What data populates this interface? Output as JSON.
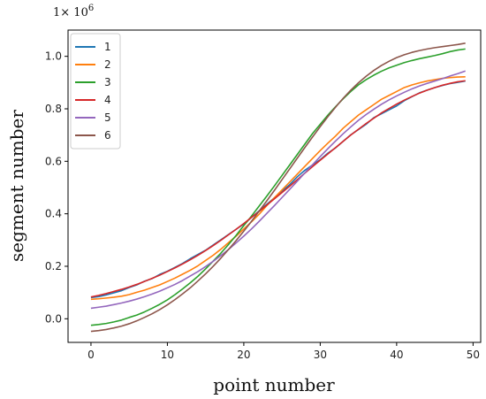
{
  "chart_data": {
    "type": "line",
    "title": "",
    "xlabel": "point number",
    "ylabel": "segment number",
    "scale_label": "1× 10",
    "scale_exp": "6",
    "xlim": [
      -3,
      51
    ],
    "ylim": [
      -0.09,
      1.1
    ],
    "x_ticks": [
      0,
      10,
      20,
      30,
      40,
      50
    ],
    "y_ticks": [
      0.0,
      0.2,
      0.4,
      0.6,
      0.8,
      1.0
    ],
    "x_tick_labels": [
      "0",
      "10",
      "20",
      "30",
      "40",
      "50"
    ],
    "y_tick_labels": [
      "0.0",
      "0.2",
      "0.4",
      "0.6",
      "0.8",
      "1.0"
    ],
    "grid": false,
    "legend_position": "top-left",
    "x": [
      0,
      1,
      2,
      3,
      4,
      5,
      6,
      7,
      8,
      9,
      10,
      11,
      12,
      13,
      14,
      15,
      16,
      17,
      18,
      19,
      20,
      21,
      22,
      23,
      24,
      25,
      26,
      27,
      28,
      29,
      30,
      31,
      32,
      33,
      34,
      35,
      36,
      37,
      38,
      39,
      40,
      41,
      42,
      43,
      44,
      45,
      46,
      47,
      48,
      49
    ],
    "series": [
      {
        "name": "1",
        "color": "#1f77b4",
        "values": [
          0.081,
          0.084,
          0.091,
          0.099,
          0.107,
          0.119,
          0.129,
          0.143,
          0.153,
          0.169,
          0.181,
          0.196,
          0.211,
          0.229,
          0.245,
          0.261,
          0.281,
          0.301,
          0.321,
          0.341,
          0.361,
          0.386,
          0.411,
          0.436,
          0.461,
          0.486,
          0.511,
          0.541,
          0.566,
          0.586,
          0.606,
          0.631,
          0.651,
          0.676,
          0.701,
          0.721,
          0.741,
          0.766,
          0.781,
          0.796,
          0.811,
          0.831,
          0.846,
          0.861,
          0.871,
          0.881,
          0.889,
          0.896,
          0.901,
          0.906
        ]
      },
      {
        "name": "2",
        "color": "#ff7f0e",
        "values": [
          0.074,
          0.076,
          0.079,
          0.082,
          0.086,
          0.092,
          0.101,
          0.109,
          0.119,
          0.129,
          0.142,
          0.155,
          0.17,
          0.185,
          0.202,
          0.222,
          0.242,
          0.265,
          0.29,
          0.315,
          0.342,
          0.369,
          0.398,
          0.431,
          0.461,
          0.491,
          0.521,
          0.551,
          0.581,
          0.611,
          0.641,
          0.669,
          0.696,
          0.726,
          0.751,
          0.776,
          0.796,
          0.816,
          0.836,
          0.851,
          0.866,
          0.881,
          0.891,
          0.899,
          0.906,
          0.911,
          0.916,
          0.919,
          0.921,
          0.922
        ]
      },
      {
        "name": "3",
        "color": "#2ca02c",
        "values": [
          -0.025,
          -0.022,
          -0.018,
          -0.012,
          -0.005,
          0.005,
          0.014,
          0.026,
          0.04,
          0.055,
          0.072,
          0.092,
          0.114,
          0.137,
          0.162,
          0.19,
          0.22,
          0.25,
          0.283,
          0.318,
          0.355,
          0.391,
          0.429,
          0.467,
          0.506,
          0.546,
          0.586,
          0.626,
          0.666,
          0.706,
          0.741,
          0.776,
          0.808,
          0.838,
          0.866,
          0.891,
          0.911,
          0.928,
          0.943,
          0.956,
          0.966,
          0.976,
          0.984,
          0.991,
          0.997,
          1.003,
          1.01,
          1.018,
          1.024,
          1.028
        ]
      },
      {
        "name": "4",
        "color": "#d62728",
        "values": [
          0.083,
          0.089,
          0.096,
          0.104,
          0.112,
          0.121,
          0.131,
          0.142,
          0.154,
          0.166,
          0.18,
          0.194,
          0.209,
          0.225,
          0.242,
          0.26,
          0.279,
          0.299,
          0.32,
          0.341,
          0.363,
          0.386,
          0.409,
          0.433,
          0.457,
          0.481,
          0.505,
          0.53,
          0.555,
          0.58,
          0.604,
          0.628,
          0.652,
          0.676,
          0.7,
          0.722,
          0.744,
          0.764,
          0.784,
          0.801,
          0.818,
          0.833,
          0.847,
          0.86,
          0.871,
          0.881,
          0.89,
          0.897,
          0.903,
          0.907
        ]
      },
      {
        "name": "5",
        "color": "#9467bd",
        "values": [
          0.04,
          0.044,
          0.048,
          0.054,
          0.06,
          0.067,
          0.075,
          0.084,
          0.094,
          0.105,
          0.118,
          0.131,
          0.146,
          0.163,
          0.18,
          0.199,
          0.219,
          0.241,
          0.264,
          0.289,
          0.315,
          0.342,
          0.371,
          0.401,
          0.431,
          0.462,
          0.493,
          0.524,
          0.556,
          0.587,
          0.618,
          0.648,
          0.677,
          0.705,
          0.731,
          0.756,
          0.778,
          0.798,
          0.817,
          0.834,
          0.849,
          0.863,
          0.876,
          0.887,
          0.897,
          0.906,
          0.915,
          0.925,
          0.934,
          0.944
        ]
      },
      {
        "name": "6",
        "color": "#8c564b",
        "values": [
          -0.048,
          -0.045,
          -0.041,
          -0.035,
          -0.028,
          -0.019,
          -0.008,
          0.005,
          0.019,
          0.035,
          0.053,
          0.073,
          0.095,
          0.118,
          0.144,
          0.171,
          0.2,
          0.231,
          0.264,
          0.298,
          0.334,
          0.371,
          0.41,
          0.449,
          0.489,
          0.53,
          0.571,
          0.612,
          0.653,
          0.693,
          0.732,
          0.77,
          0.806,
          0.84,
          0.871,
          0.899,
          0.924,
          0.946,
          0.965,
          0.981,
          0.995,
          1.006,
          1.015,
          1.022,
          1.028,
          1.033,
          1.037,
          1.041,
          1.045,
          1.05
        ]
      }
    ]
  }
}
